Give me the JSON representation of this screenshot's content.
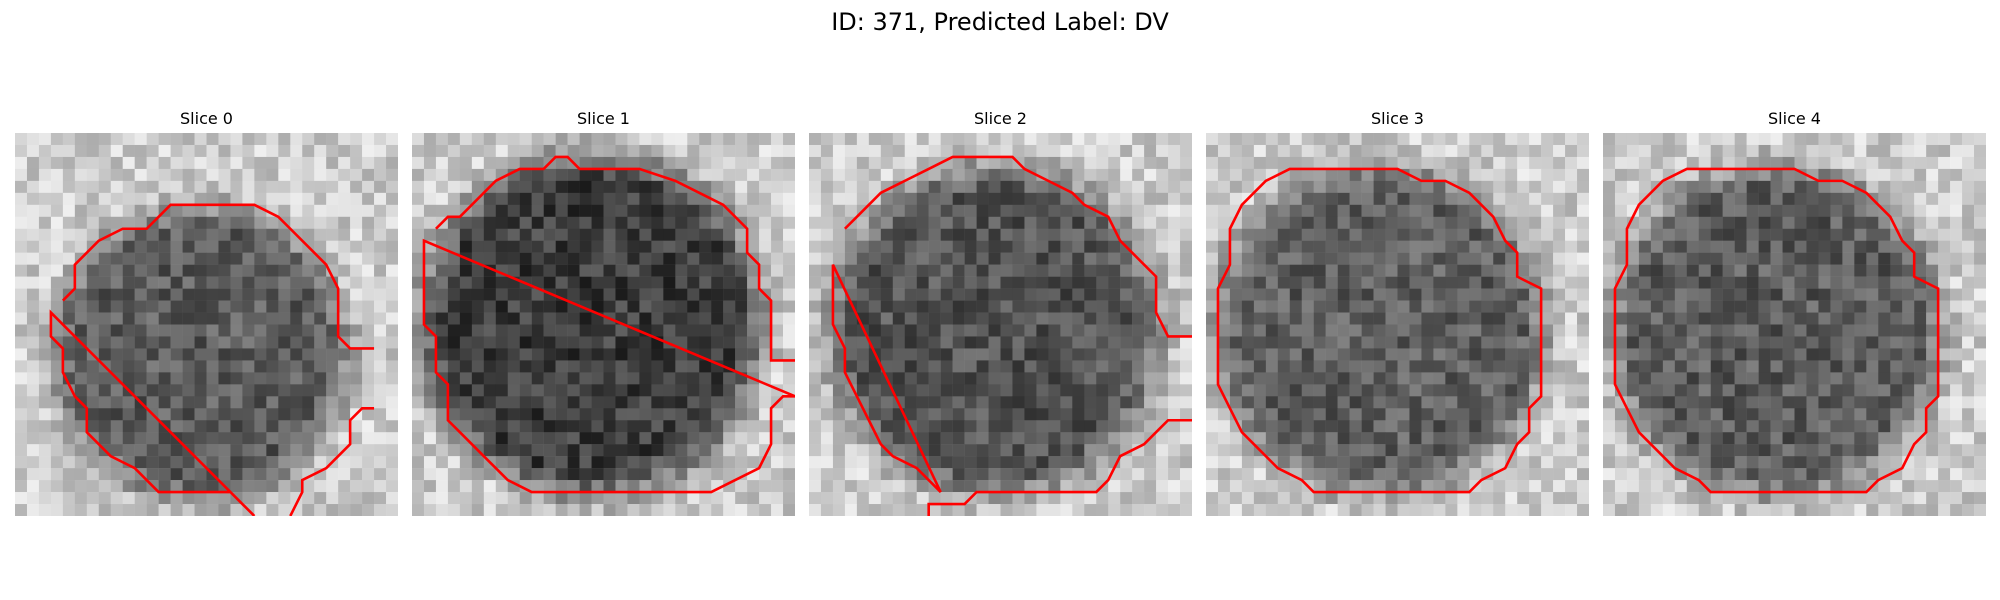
{
  "figure": {
    "title": "ID: 371, Predicted Label: DV"
  },
  "slices": [
    {
      "title": "Slice 0"
    },
    {
      "title": "Slice 1"
    },
    {
      "title": "Slice 2"
    },
    {
      "title": "Slice 3"
    },
    {
      "title": "Slice 4"
    }
  ],
  "colors": {
    "contour": "#ff0000",
    "background": "#ffffff"
  }
}
